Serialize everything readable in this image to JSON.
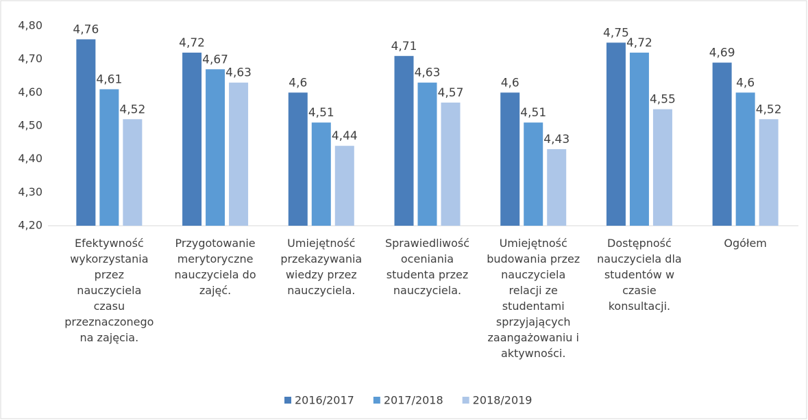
{
  "chart_data": {
    "type": "bar",
    "categories": [
      "Efektywność wykorzystania przez nauczyciela czasu przeznaczonego na zajęcia.",
      "Przygotowanie merytoryczne nauczyciela do zajęć.",
      "Umiejętność przekazywania wiedzy przez nauczyciela.",
      "Sprawiedliwość oceniania studenta przez nauczyciela.",
      "Umiejętność budowania przez nauczyciela relacji ze studentami sprzyjających zaangażowaniu i aktywności.",
      "Dostępność nauczyciela dla studentów w czasie konsultacji.",
      "Ogółem"
    ],
    "series": [
      {
        "name": "2016/2017",
        "color": "#4a7ebb",
        "values": [
          4.76,
          4.72,
          4.6,
          4.71,
          4.6,
          4.75,
          4.69
        ],
        "value_labels": [
          "4,76",
          "4,72",
          "4,6",
          "4,71",
          "4,6",
          "4,75",
          "4,69"
        ]
      },
      {
        "name": "2017/2018",
        "color": "#5b9bd5",
        "values": [
          4.61,
          4.67,
          4.51,
          4.63,
          4.51,
          4.72,
          4.6
        ],
        "value_labels": [
          "4,61",
          "4,67",
          "4,51",
          "4,63",
          "4,51",
          "4,72",
          "4,6"
        ]
      },
      {
        "name": "2018/2019",
        "color": "#adc6e8",
        "values": [
          4.52,
          4.63,
          4.44,
          4.57,
          4.43,
          4.55,
          4.52
        ],
        "value_labels": [
          "4,52",
          "4,63",
          "4,44",
          "4,57",
          "4,43",
          "4,55",
          "4,52"
        ]
      }
    ],
    "ylim": [
      4.2,
      4.8
    ],
    "yticks": [
      {
        "value": 4.2,
        "label": "4,20"
      },
      {
        "value": 4.3,
        "label": "4,30"
      },
      {
        "value": 4.4,
        "label": "4,40"
      },
      {
        "value": 4.5,
        "label": "4,50"
      },
      {
        "value": 4.6,
        "label": "4,60"
      },
      {
        "value": 4.7,
        "label": "4,70"
      },
      {
        "value": 4.8,
        "label": "4,80"
      }
    ],
    "grid": false,
    "legend": "bottom"
  }
}
